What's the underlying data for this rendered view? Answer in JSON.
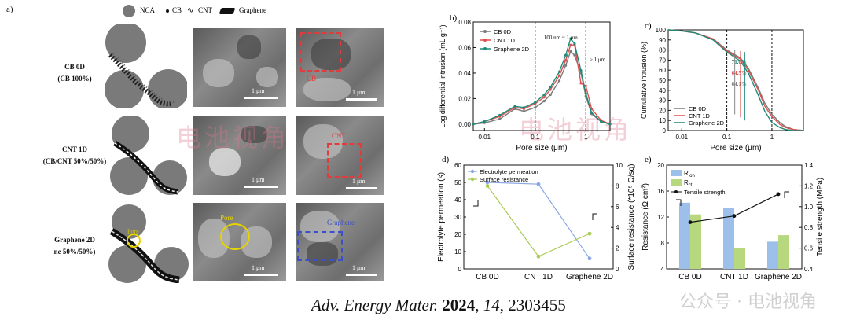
{
  "panel_a": {
    "letter": "a)",
    "legend": {
      "nca": "NCA",
      "cb": "CB",
      "cnt": "CNT",
      "graphene": "Graphene"
    },
    "rows": [
      {
        "title": "CB 0D",
        "subtitle": "(CB 100%)",
        "highlight": "CB",
        "highlight_color": "#e23b3b"
      },
      {
        "title": "CNT 1D",
        "subtitle": "(CB/CNT 50%/50%)",
        "highlight": "CNT",
        "highlight_color": "#e23b3b"
      },
      {
        "title": "Graphene 2D",
        "subtitle": "ne 50%/50%)",
        "highlight": "Graphene",
        "highlight_color": "#3b50c8"
      }
    ],
    "pore_label": "Pore",
    "scale": "1 μm",
    "watermark": "电池视角"
  },
  "chart_data": [
    {
      "panel": "b)",
      "type": "line",
      "xlabel": "Pore size (μm)",
      "ylabel": "Log differential intrusion (mL g⁻¹)",
      "xscale": "log",
      "xlim": [
        0.006,
        3
      ],
      "ylim": [
        -0.005,
        0.08
      ],
      "xticks": [
        "0.01",
        "0.1",
        "1"
      ],
      "yticks": [
        "0.00",
        "0.02",
        "0.04",
        "0.06",
        "0.08"
      ],
      "annotations": [
        "100 nm ~ 1 μm",
        "≥ 1 μm"
      ],
      "vlines": [
        0.1,
        1
      ],
      "legend": "top-left",
      "x": [
        0.006,
        0.01,
        0.02,
        0.04,
        0.06,
        0.1,
        0.15,
        0.2,
        0.3,
        0.4,
        0.5,
        0.6,
        0.8,
        1.0,
        1.3,
        2.0,
        3.0
      ],
      "series": [
        {
          "name": "CB 0D",
          "color": "#7a7a7a",
          "values": [
            0.0,
            0.001,
            0.004,
            0.012,
            0.01,
            0.013,
            0.018,
            0.023,
            0.034,
            0.046,
            0.057,
            0.054,
            0.04,
            0.022,
            0.008,
            0.002,
            0.0
          ]
        },
        {
          "name": "CNT 1D",
          "color": "#e05050",
          "values": [
            0.0,
            0.002,
            0.006,
            0.013,
            0.012,
            0.016,
            0.021,
            0.027,
            0.038,
            0.05,
            0.062,
            0.062,
            0.032,
            0.03,
            0.012,
            0.003,
            0.0
          ]
        },
        {
          "name": "Graphene 2D",
          "color": "#1f8a78",
          "values": [
            0.0,
            0.002,
            0.007,
            0.014,
            0.013,
            0.017,
            0.023,
            0.029,
            0.041,
            0.054,
            0.067,
            0.063,
            0.042,
            0.024,
            0.009,
            0.002,
            0.0
          ]
        }
      ]
    },
    {
      "panel": "c)",
      "type": "line",
      "xlabel": "Pore size (μm)",
      "ylabel": "Cumulative intrusion (%)",
      "xscale": "log",
      "xlim": [
        0.005,
        5
      ],
      "ylim": [
        0,
        100
      ],
      "xticks": [
        "0.01",
        "0.1",
        "1"
      ],
      "yticks": [
        "0",
        "10",
        "20",
        "30",
        "40",
        "50",
        "60",
        "70",
        "80",
        "90",
        "100"
      ],
      "annotations": [
        {
          "text": "64.1%",
          "color": "#7a7a7a"
        },
        {
          "text": "64.5%",
          "color": "#e05050"
        },
        {
          "text": "70.0%",
          "color": "#1f8a78"
        }
      ],
      "vlines": [
        0.1,
        1
      ],
      "legend": "bottom-left",
      "x": [
        0.005,
        0.01,
        0.02,
        0.05,
        0.1,
        0.2,
        0.3,
        0.5,
        0.7,
        1.0,
        1.5,
        2.0,
        3.0,
        5.0
      ],
      "series": [
        {
          "name": "CB 0D",
          "color": "#7a7a7a",
          "values": [
            100,
            99,
            97,
            91,
            80,
            72,
            62,
            42,
            27,
            16,
            8,
            4,
            1,
            0
          ]
        },
        {
          "name": "CNT 1D",
          "color": "#e05050",
          "values": [
            100,
            99,
            97,
            91,
            79,
            71,
            60,
            40,
            24,
            14,
            6,
            3,
            1,
            0
          ]
        },
        {
          "name": "Graphene 2D",
          "color": "#1f8a78",
          "values": [
            100,
            99,
            97,
            90,
            78,
            69,
            57,
            35,
            19,
            8,
            3,
            1,
            0,
            0
          ]
        }
      ]
    },
    {
      "panel": "d)",
      "type": "line",
      "categories": [
        "CB 0D",
        "CNT 1D",
        "Graphene 2D"
      ],
      "ylabel": "Electrolyte permeation (s)",
      "y2label": "Surface resistance (*10⁵ Ω/sq)",
      "ylim": [
        0,
        60
      ],
      "y2lim": [
        0,
        10
      ],
      "yticks": [
        "0",
        "10",
        "20",
        "30",
        "40",
        "50",
        "60"
      ],
      "y2ticks": [
        "0",
        "2",
        "4",
        "6",
        "8",
        "10"
      ],
      "legend": "top-left",
      "series": [
        {
          "name": "Electrolyte permeation",
          "axis": "left",
          "color": "#8aa6e6",
          "values": [
            50,
            49,
            6
          ]
        },
        {
          "name": "Surface resistance",
          "axis": "right",
          "color": "#a9cc55",
          "values": [
            8,
            1.2,
            3.4
          ]
        }
      ]
    },
    {
      "panel": "e)",
      "type": "bar",
      "categories": [
        "CB 0D",
        "CNT 1D",
        "Graphene 2D"
      ],
      "ylabel": "Resistance (Ω cm²)",
      "y2label": "Tensile strength (MPa)",
      "ylim": [
        4,
        20
      ],
      "y2lim": [
        0.4,
        1.4
      ],
      "yticks": [
        "4",
        "8",
        "12",
        "16",
        "20"
      ],
      "y2ticks": [
        "0.4",
        "0.6",
        "0.8",
        "1.0",
        "1.2",
        "1.4"
      ],
      "legend": "top-left",
      "series": [
        {
          "name": "R",
          "subscript": "ion",
          "color": "#9cc0ea",
          "values": [
            14.2,
            13.4,
            8.2
          ]
        },
        {
          "name": "R",
          "subscript": "ct",
          "color": "#b8d880",
          "values": [
            12.4,
            7.2,
            9.2
          ]
        },
        {
          "name": "Tensile strength",
          "axis": "right",
          "type": "line",
          "color": "#111111",
          "values": [
            0.85,
            0.91,
            1.12
          ]
        }
      ]
    }
  ],
  "citation": {
    "journal": "Adv. Energy Mater. ",
    "year": "2024",
    "volume": "14",
    "article": ", 2303455"
  },
  "overlay_text": "公众号 · 电池视角"
}
